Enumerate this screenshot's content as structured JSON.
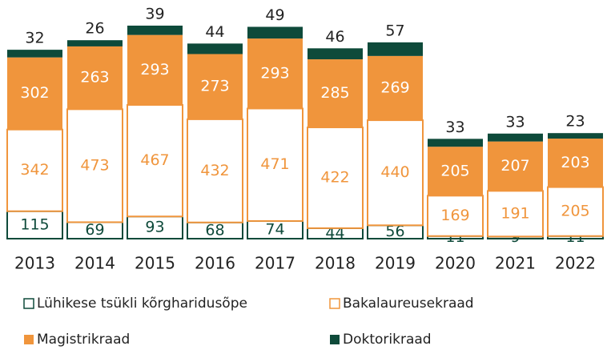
{
  "chart_data": {
    "type": "stacked_bar",
    "categories": [
      "2013",
      "2014",
      "2015",
      "2016",
      "2017",
      "2018",
      "2019",
      "2020",
      "2021",
      "2022"
    ],
    "series": [
      {
        "name": "Lühikese tsükli kõrgharidusõpe",
        "color": "#0e4a3a",
        "filled": false,
        "values": [
          115,
          69,
          93,
          68,
          74,
          44,
          56,
          11,
          9,
          11
        ]
      },
      {
        "name": "Bakalaureusekraad",
        "color": "#f0953c",
        "filled": false,
        "values": [
          342,
          473,
          467,
          432,
          471,
          422,
          440,
          169,
          191,
          205
        ]
      },
      {
        "name": "Magistrikraad",
        "color": "#f0953c",
        "filled": true,
        "values": [
          302,
          263,
          293,
          273,
          293,
          285,
          269,
          205,
          207,
          203
        ]
      },
      {
        "name": "Doktorikraad",
        "color": "#0e4a3a",
        "filled": true,
        "values": [
          32,
          26,
          39,
          44,
          49,
          46,
          57,
          33,
          33,
          23
        ]
      }
    ]
  }
}
